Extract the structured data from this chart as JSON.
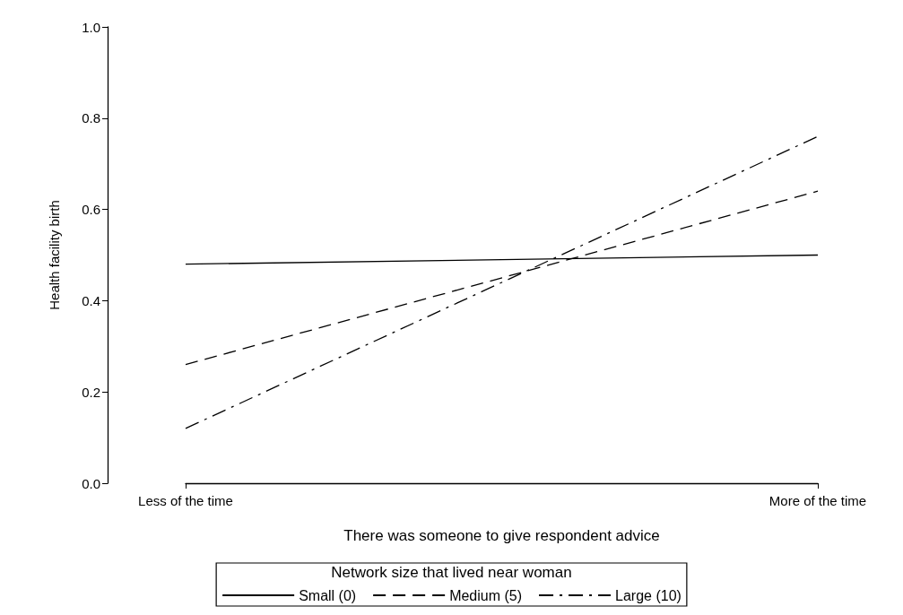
{
  "chart_data": {
    "type": "line",
    "xlabel": "There was someone to give respondent advice",
    "ylabel": "Health facility birth",
    "legend_title": "Network size that lived near woman",
    "categories": [
      "Less of the time",
      "More of the time"
    ],
    "series": [
      {
        "name": "Small (0)",
        "color": "#000000",
        "line_style": "solid",
        "values": [
          0.48,
          0.5
        ]
      },
      {
        "name": "Medium (5)",
        "color": "#000000",
        "line_style": "dashed",
        "values": [
          0.26,
          0.64
        ]
      },
      {
        "name": "Large (10)",
        "color": "#000000",
        "line_style": "dashdot",
        "values": [
          0.12,
          0.76
        ]
      }
    ],
    "ylim": [
      0,
      1
    ],
    "yticks": [
      {
        "value": 0,
        "label": "0.0"
      },
      {
        "value": 0.2,
        "label": "0.2"
      },
      {
        "value": 0.4,
        "label": "0.4"
      },
      {
        "value": 0.6,
        "label": "0.6"
      },
      {
        "value": 0.8,
        "label": "0.8"
      },
      {
        "value": 1,
        "label": "1.0"
      }
    ],
    "grid": false,
    "legend": "bottom",
    "marker": "none"
  }
}
